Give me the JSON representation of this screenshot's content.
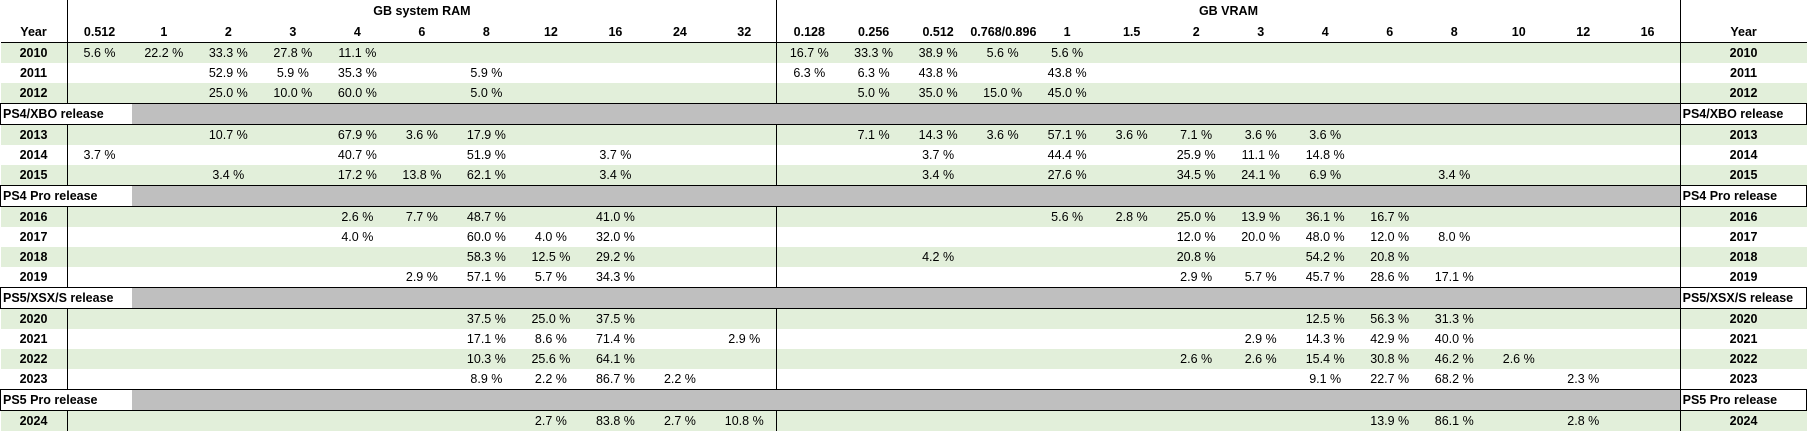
{
  "headers": {
    "ram_group": "GB system RAM",
    "vram_group": "GB VRAM",
    "year_left": "Year",
    "year_right": "Year",
    "ram_cols": [
      "0.512",
      "1",
      "2",
      "3",
      "4",
      "6",
      "8",
      "12",
      "16",
      "24",
      "32"
    ],
    "vram_cols": [
      "0.128",
      "0.256",
      "0.512",
      "0.768/0.896",
      "1",
      "1.5",
      "2",
      "3",
      "4",
      "6",
      "8",
      "10",
      "12",
      "16"
    ]
  },
  "rows": [
    {
      "type": "data",
      "year": "2010",
      "ram": [
        "5.6 %",
        "22.2 %",
        "33.3 %",
        "27.8 %",
        "11.1 %",
        "",
        "",
        "",
        "",
        "",
        ""
      ],
      "vram": [
        "16.7 %",
        "33.3 %",
        "38.9 %",
        "5.6 %",
        "5.6 %",
        "",
        "",
        "",
        "",
        "",
        "",
        "",
        "",
        ""
      ]
    },
    {
      "type": "data",
      "year": "2011",
      "ram": [
        "",
        "",
        "52.9 %",
        "5.9 %",
        "35.3 %",
        "",
        "5.9 %",
        "",
        "",
        "",
        ""
      ],
      "vram": [
        "6.3 %",
        "6.3 %",
        "43.8 %",
        "",
        "43.8 %",
        "",
        "",
        "",
        "",
        "",
        "",
        "",
        "",
        ""
      ]
    },
    {
      "type": "data",
      "year": "2012",
      "ram": [
        "",
        "",
        "25.0 %",
        "10.0 %",
        "60.0 %",
        "",
        "5.0 %",
        "",
        "",
        "",
        ""
      ],
      "vram": [
        "",
        "5.0 %",
        "35.0 %",
        "15.0 %",
        "45.0 %",
        "",
        "",
        "",
        "",
        "",
        "",
        "",
        "",
        ""
      ]
    },
    {
      "type": "release",
      "label": "PS4/XBO release"
    },
    {
      "type": "data",
      "year": "2013",
      "ram": [
        "",
        "",
        "10.7 %",
        "",
        "67.9 %",
        "3.6 %",
        "17.9 %",
        "",
        "",
        "",
        ""
      ],
      "vram": [
        "",
        "7.1 %",
        "14.3 %",
        "3.6 %",
        "57.1 %",
        "3.6 %",
        "7.1 %",
        "3.6 %",
        "3.6 %",
        "",
        "",
        "",
        "",
        ""
      ]
    },
    {
      "type": "data",
      "year": "2014",
      "ram": [
        "3.7 %",
        "",
        "",
        "",
        "40.7 %",
        "",
        "51.9 %",
        "",
        "3.7 %",
        "",
        ""
      ],
      "vram": [
        "",
        "",
        "3.7 %",
        "",
        "44.4 %",
        "",
        "25.9 %",
        "11.1 %",
        "14.8 %",
        "",
        "",
        "",
        "",
        ""
      ]
    },
    {
      "type": "data",
      "year": "2015",
      "ram": [
        "",
        "",
        "3.4 %",
        "",
        "17.2 %",
        "13.8 %",
        "62.1 %",
        "",
        "3.4 %",
        "",
        ""
      ],
      "vram": [
        "",
        "",
        "3.4 %",
        "",
        "27.6 %",
        "",
        "34.5 %",
        "24.1 %",
        "6.9 %",
        "",
        "3.4 %",
        "",
        "",
        ""
      ]
    },
    {
      "type": "release",
      "label": "PS4 Pro release"
    },
    {
      "type": "data",
      "year": "2016",
      "ram": [
        "",
        "",
        "",
        "",
        "2.6 %",
        "7.7 %",
        "48.7 %",
        "",
        "41.0 %",
        "",
        ""
      ],
      "vram": [
        "",
        "",
        "",
        "",
        "5.6 %",
        "2.8 %",
        "25.0 %",
        "13.9 %",
        "36.1 %",
        "16.7 %",
        "",
        "",
        "",
        ""
      ]
    },
    {
      "type": "data",
      "year": "2017",
      "ram": [
        "",
        "",
        "",
        "",
        "4.0 %",
        "",
        "60.0 %",
        "4.0 %",
        "32.0 %",
        "",
        ""
      ],
      "vram": [
        "",
        "",
        "",
        "",
        "",
        "",
        "12.0 %",
        "20.0 %",
        "48.0 %",
        "12.0 %",
        "8.0 %",
        "",
        "",
        ""
      ]
    },
    {
      "type": "data",
      "year": "2018",
      "ram": [
        "",
        "",
        "",
        "",
        "",
        "",
        "58.3 %",
        "12.5 %",
        "29.2 %",
        "",
        ""
      ],
      "vram": [
        "",
        "",
        "4.2 %",
        "",
        "",
        "",
        "20.8 %",
        "",
        "54.2 %",
        "20.8 %",
        "",
        "",
        "",
        ""
      ]
    },
    {
      "type": "data",
      "year": "2019",
      "ram": [
        "",
        "",
        "",
        "",
        "",
        "2.9 %",
        "57.1 %",
        "5.7 %",
        "34.3 %",
        "",
        ""
      ],
      "vram": [
        "",
        "",
        "",
        "",
        "",
        "",
        "2.9 %",
        "5.7 %",
        "45.7 %",
        "28.6 %",
        "17.1 %",
        "",
        "",
        ""
      ]
    },
    {
      "type": "release",
      "label": "PS5/XSX/S release"
    },
    {
      "type": "data",
      "year": "2020",
      "ram": [
        "",
        "",
        "",
        "",
        "",
        "",
        "37.5 %",
        "25.0 %",
        "37.5 %",
        "",
        ""
      ],
      "vram": [
        "",
        "",
        "",
        "",
        "",
        "",
        "",
        "",
        "12.5 %",
        "56.3 %",
        "31.3 %",
        "",
        "",
        ""
      ]
    },
    {
      "type": "data",
      "year": "2021",
      "ram": [
        "",
        "",
        "",
        "",
        "",
        "",
        "17.1 %",
        "8.6 %",
        "71.4 %",
        "",
        "2.9 %"
      ],
      "vram": [
        "",
        "",
        "",
        "",
        "",
        "",
        "",
        "2.9 %",
        "14.3 %",
        "42.9 %",
        "40.0 %",
        "",
        "",
        ""
      ]
    },
    {
      "type": "data",
      "year": "2022",
      "ram": [
        "",
        "",
        "",
        "",
        "",
        "",
        "10.3 %",
        "25.6 %",
        "64.1 %",
        "",
        ""
      ],
      "vram": [
        "",
        "",
        "",
        "",
        "",
        "",
        "2.6 %",
        "2.6 %",
        "15.4 %",
        "30.8 %",
        "46.2 %",
        "2.6 %",
        "",
        ""
      ]
    },
    {
      "type": "data",
      "year": "2023",
      "ram": [
        "",
        "",
        "",
        "",
        "",
        "",
        "8.9 %",
        "2.2 %",
        "86.7 %",
        "2.2 %",
        ""
      ],
      "vram": [
        "",
        "",
        "",
        "",
        "",
        "",
        "",
        "",
        "9.1 %",
        "22.7 %",
        "68.2 %",
        "",
        "2.3 %",
        ""
      ]
    },
    {
      "type": "release",
      "label": "PS5 Pro release"
    },
    {
      "type": "data",
      "year": "2024",
      "ram": [
        "",
        "",
        "",
        "",
        "",
        "",
        "",
        "2.7 %",
        "83.8 %",
        "2.7 %",
        "10.8 %"
      ],
      "vram": [
        "",
        "",
        "",
        "",
        "",
        "",
        "",
        "",
        "",
        "13.9 %",
        "86.1 %",
        "",
        "2.8 %",
        ""
      ]
    }
  ]
}
